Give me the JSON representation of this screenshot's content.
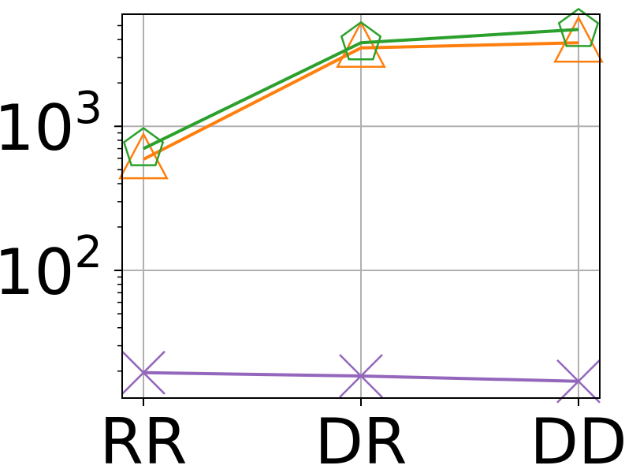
{
  "chart_data": {
    "type": "line",
    "title": "",
    "xlabel": "",
    "ylabel": "",
    "categories": [
      "RR",
      "DR",
      "DD"
    ],
    "y_scale": "log",
    "ylim": [
      13,
      6000
    ],
    "y_ticks": [
      {
        "value": 100,
        "base": "10",
        "exp": "2"
      },
      {
        "value": 1000,
        "base": "10",
        "exp": "3"
      }
    ],
    "grid": true,
    "legend": "none",
    "series": [
      {
        "color": "#2ca02c",
        "marker": "pentagon",
        "values": [
          700,
          3800,
          4700
        ]
      },
      {
        "color": "#ff7f0e",
        "marker": "triangle",
        "values": [
          590,
          3500,
          3800
        ]
      },
      {
        "color": "#9467bd",
        "marker": "x",
        "values": [
          19.5,
          18.5,
          17
        ]
      }
    ]
  }
}
